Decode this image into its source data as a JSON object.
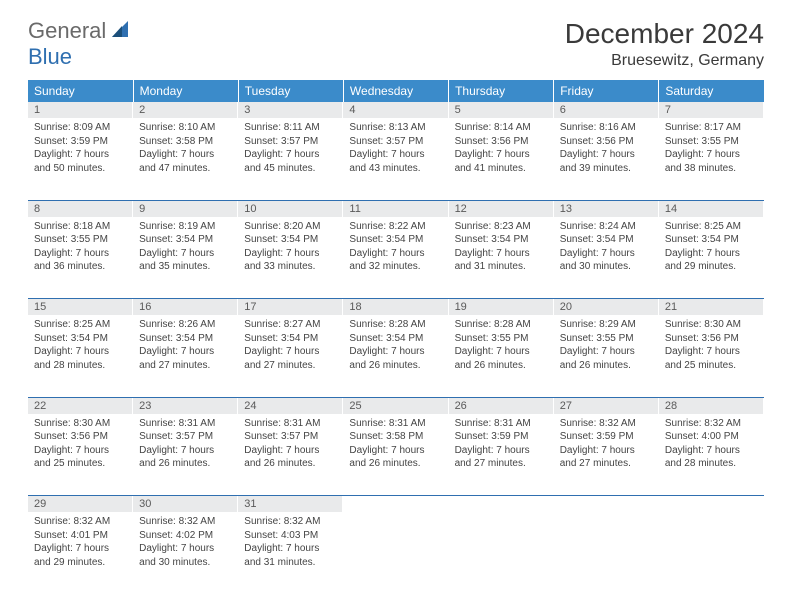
{
  "brand": {
    "part1": "General",
    "part2": "Blue"
  },
  "title": "December 2024",
  "location": "Bruesewitz, Germany",
  "colors": {
    "header_bg": "#3b8bca",
    "header_text": "#ffffff",
    "daynum_bg": "#e9eaeb",
    "rule": "#2f6fb0",
    "brand_gray": "#6a6a6a",
    "brand_blue": "#2f6fb0"
  },
  "weekdays": [
    "Sunday",
    "Monday",
    "Tuesday",
    "Wednesday",
    "Thursday",
    "Friday",
    "Saturday"
  ],
  "weeks": [
    [
      {
        "n": "1",
        "sr": "8:09 AM",
        "ss": "3:59 PM",
        "dl": "7 hours and 50 minutes."
      },
      {
        "n": "2",
        "sr": "8:10 AM",
        "ss": "3:58 PM",
        "dl": "7 hours and 47 minutes."
      },
      {
        "n": "3",
        "sr": "8:11 AM",
        "ss": "3:57 PM",
        "dl": "7 hours and 45 minutes."
      },
      {
        "n": "4",
        "sr": "8:13 AM",
        "ss": "3:57 PM",
        "dl": "7 hours and 43 minutes."
      },
      {
        "n": "5",
        "sr": "8:14 AM",
        "ss": "3:56 PM",
        "dl": "7 hours and 41 minutes."
      },
      {
        "n": "6",
        "sr": "8:16 AM",
        "ss": "3:56 PM",
        "dl": "7 hours and 39 minutes."
      },
      {
        "n": "7",
        "sr": "8:17 AM",
        "ss": "3:55 PM",
        "dl": "7 hours and 38 minutes."
      }
    ],
    [
      {
        "n": "8",
        "sr": "8:18 AM",
        "ss": "3:55 PM",
        "dl": "7 hours and 36 minutes."
      },
      {
        "n": "9",
        "sr": "8:19 AM",
        "ss": "3:54 PM",
        "dl": "7 hours and 35 minutes."
      },
      {
        "n": "10",
        "sr": "8:20 AM",
        "ss": "3:54 PM",
        "dl": "7 hours and 33 minutes."
      },
      {
        "n": "11",
        "sr": "8:22 AM",
        "ss": "3:54 PM",
        "dl": "7 hours and 32 minutes."
      },
      {
        "n": "12",
        "sr": "8:23 AM",
        "ss": "3:54 PM",
        "dl": "7 hours and 31 minutes."
      },
      {
        "n": "13",
        "sr": "8:24 AM",
        "ss": "3:54 PM",
        "dl": "7 hours and 30 minutes."
      },
      {
        "n": "14",
        "sr": "8:25 AM",
        "ss": "3:54 PM",
        "dl": "7 hours and 29 minutes."
      }
    ],
    [
      {
        "n": "15",
        "sr": "8:25 AM",
        "ss": "3:54 PM",
        "dl": "7 hours and 28 minutes."
      },
      {
        "n": "16",
        "sr": "8:26 AM",
        "ss": "3:54 PM",
        "dl": "7 hours and 27 minutes."
      },
      {
        "n": "17",
        "sr": "8:27 AM",
        "ss": "3:54 PM",
        "dl": "7 hours and 27 minutes."
      },
      {
        "n": "18",
        "sr": "8:28 AM",
        "ss": "3:54 PM",
        "dl": "7 hours and 26 minutes."
      },
      {
        "n": "19",
        "sr": "8:28 AM",
        "ss": "3:55 PM",
        "dl": "7 hours and 26 minutes."
      },
      {
        "n": "20",
        "sr": "8:29 AM",
        "ss": "3:55 PM",
        "dl": "7 hours and 26 minutes."
      },
      {
        "n": "21",
        "sr": "8:30 AM",
        "ss": "3:56 PM",
        "dl": "7 hours and 25 minutes."
      }
    ],
    [
      {
        "n": "22",
        "sr": "8:30 AM",
        "ss": "3:56 PM",
        "dl": "7 hours and 25 minutes."
      },
      {
        "n": "23",
        "sr": "8:31 AM",
        "ss": "3:57 PM",
        "dl": "7 hours and 26 minutes."
      },
      {
        "n": "24",
        "sr": "8:31 AM",
        "ss": "3:57 PM",
        "dl": "7 hours and 26 minutes."
      },
      {
        "n": "25",
        "sr": "8:31 AM",
        "ss": "3:58 PM",
        "dl": "7 hours and 26 minutes."
      },
      {
        "n": "26",
        "sr": "8:31 AM",
        "ss": "3:59 PM",
        "dl": "7 hours and 27 minutes."
      },
      {
        "n": "27",
        "sr": "8:32 AM",
        "ss": "3:59 PM",
        "dl": "7 hours and 27 minutes."
      },
      {
        "n": "28",
        "sr": "8:32 AM",
        "ss": "4:00 PM",
        "dl": "7 hours and 28 minutes."
      }
    ],
    [
      {
        "n": "29",
        "sr": "8:32 AM",
        "ss": "4:01 PM",
        "dl": "7 hours and 29 minutes."
      },
      {
        "n": "30",
        "sr": "8:32 AM",
        "ss": "4:02 PM",
        "dl": "7 hours and 30 minutes."
      },
      {
        "n": "31",
        "sr": "8:32 AM",
        "ss": "4:03 PM",
        "dl": "7 hours and 31 minutes."
      },
      null,
      null,
      null,
      null
    ]
  ],
  "labels": {
    "sunrise": "Sunrise:",
    "sunset": "Sunset:",
    "daylight": "Daylight:"
  }
}
